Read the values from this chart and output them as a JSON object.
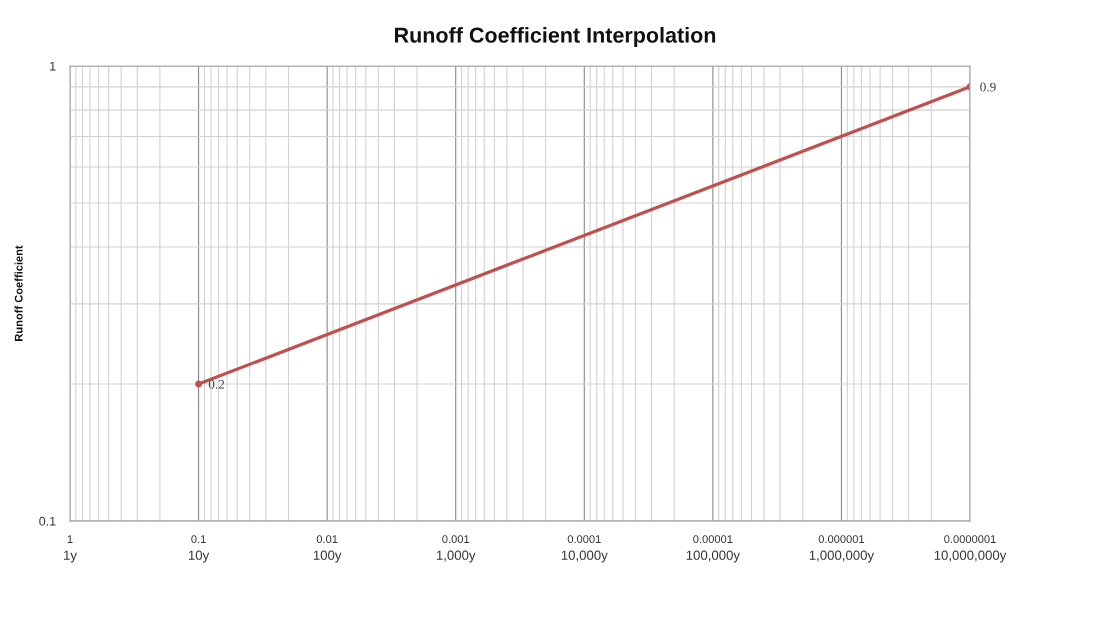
{
  "chart_data": {
    "type": "line",
    "title": "Runoff Coefficient Interpolation",
    "ylabel": "Runoff Coefficient",
    "x": [
      0.1,
      1e-07
    ],
    "series": [
      {
        "color": "#c0504d",
        "values": [
          0.2,
          0.9
        ]
      }
    ],
    "xlim": [
      1,
      1e-07
    ],
    "ylim": [
      0.1,
      1
    ],
    "xticks": [
      1,
      0.1,
      0.01,
      0.001,
      0.0001,
      {
        "value": 1e-05,
        "label": "0.00001"
      },
      {
        "value": 1e-06,
        "label": "0.000001"
      },
      {
        "value": 1e-07,
        "label": "0.0000001"
      }
    ],
    "annotations": [
      "1y",
      "10y",
      "100y",
      "1,000y",
      "10,000y",
      "100,000y",
      "1,000,000y",
      "10,000,000y"
    ],
    "yticks": [
      0.1,
      1
    ],
    "log": "xy",
    "grid": true,
    "marker": "circle",
    "line_style": "solid",
    "data_labels": true
  }
}
